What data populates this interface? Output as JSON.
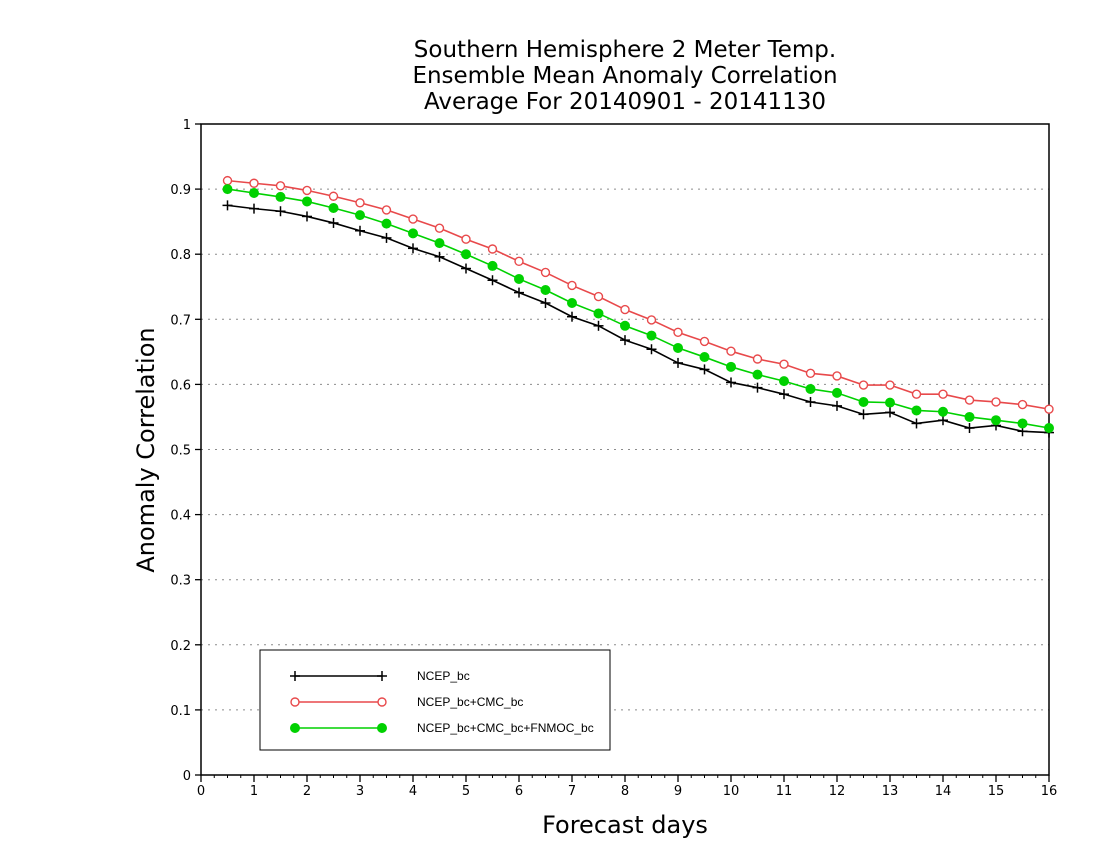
{
  "chart_data": {
    "type": "line",
    "title_lines": [
      "Southern Hemisphere 2 Meter Temp.",
      "Ensemble Mean Anomaly Correlation",
      "Average For 20140901 - 20141130"
    ],
    "xlabel": "Forecast days",
    "ylabel": "Anomaly Correlation",
    "xlim": [
      0,
      16
    ],
    "ylim": [
      0,
      1
    ],
    "xticks": [
      0,
      1,
      2,
      3,
      4,
      5,
      6,
      7,
      8,
      9,
      10,
      11,
      12,
      13,
      14,
      15,
      16
    ],
    "xtick_labels": [
      "0",
      "1",
      "2",
      "3",
      "4",
      "5",
      "6",
      "7",
      "8",
      "9",
      "10",
      "11",
      "12",
      "13",
      "14",
      "15",
      "16"
    ],
    "yticks": [
      0,
      0.1,
      0.2,
      0.3,
      0.4,
      0.5,
      0.6,
      0.7,
      0.8,
      0.9,
      1
    ],
    "ytick_labels": [
      "0",
      "0.1",
      "0.2",
      "0.3",
      "0.4",
      "0.5",
      "0.6",
      "0.7",
      "0.8",
      "0.9",
      "1"
    ],
    "grid": "horizontal dotted",
    "legend_position": "bottom-left",
    "x": [
      0.5,
      1,
      1.5,
      2,
      2.5,
      3,
      3.5,
      4,
      4.5,
      5,
      5.5,
      6,
      6.5,
      7,
      7.5,
      8,
      8.5,
      9,
      9.5,
      10,
      10.5,
      11,
      11.5,
      12,
      12.5,
      13,
      13.5,
      14,
      14.5,
      15,
      15.5,
      16
    ],
    "series": [
      {
        "name": "NCEP_bc",
        "color": "#000000",
        "marker": "plus",
        "values": [
          0.875,
          0.87,
          0.866,
          0.858,
          0.848,
          0.836,
          0.825,
          0.809,
          0.796,
          0.778,
          0.76,
          0.741,
          0.725,
          0.704,
          0.69,
          0.668,
          0.654,
          0.633,
          0.623,
          0.603,
          0.595,
          0.585,
          0.573,
          0.567,
          0.554,
          0.557,
          0.54,
          0.545,
          0.533,
          0.537,
          0.528,
          0.526
        ]
      },
      {
        "name": "NCEP_bc+CMC_bc",
        "color": "#e8494b",
        "marker": "open-circle",
        "values": [
          0.913,
          0.909,
          0.905,
          0.898,
          0.889,
          0.879,
          0.868,
          0.854,
          0.84,
          0.823,
          0.808,
          0.789,
          0.772,
          0.752,
          0.735,
          0.715,
          0.699,
          0.68,
          0.666,
          0.651,
          0.639,
          0.631,
          0.617,
          0.613,
          0.599,
          0.599,
          0.585,
          0.585,
          0.576,
          0.573,
          0.569,
          0.562
        ]
      },
      {
        "name": "NCEP_bc+CMC_bc+FNMOC_bc",
        "color": "#00d100",
        "marker": "filled-circle",
        "values": [
          0.9,
          0.894,
          0.888,
          0.881,
          0.871,
          0.86,
          0.847,
          0.832,
          0.817,
          0.8,
          0.782,
          0.762,
          0.745,
          0.725,
          0.709,
          0.69,
          0.675,
          0.656,
          0.642,
          0.627,
          0.615,
          0.605,
          0.593,
          0.587,
          0.573,
          0.572,
          0.56,
          0.558,
          0.55,
          0.545,
          0.54,
          0.533
        ]
      }
    ]
  }
}
